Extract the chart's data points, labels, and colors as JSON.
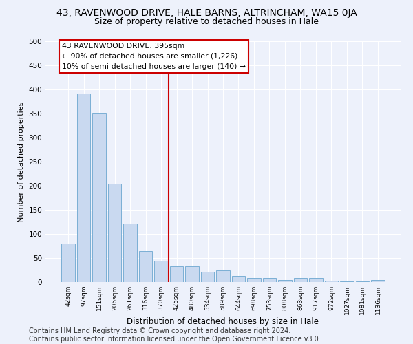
{
  "title": "43, RAVENWOOD DRIVE, HALE BARNS, ALTRINCHAM, WA15 0JA",
  "subtitle": "Size of property relative to detached houses in Hale",
  "xlabel": "Distribution of detached houses by size in Hale",
  "ylabel": "Number of detached properties",
  "categories": [
    "42sqm",
    "97sqm",
    "151sqm",
    "206sqm",
    "261sqm",
    "316sqm",
    "370sqm",
    "425sqm",
    "480sqm",
    "534sqm",
    "589sqm",
    "644sqm",
    "698sqm",
    "753sqm",
    "808sqm",
    "863sqm",
    "917sqm",
    "972sqm",
    "1027sqm",
    "1081sqm",
    "1136sqm"
  ],
  "values": [
    80,
    392,
    351,
    205,
    122,
    64,
    44,
    33,
    33,
    22,
    24,
    13,
    9,
    9,
    5,
    9,
    9,
    3,
    2,
    2,
    4
  ],
  "bar_color": "#c9d9f0",
  "bar_edge_color": "#7bafd4",
  "vline_x": 6.5,
  "vline_color": "#cc0000",
  "annotation_text": "43 RAVENWOOD DRIVE: 395sqm\n← 90% of detached houses are smaller (1,226)\n10% of semi-detached houses are larger (140) →",
  "annotation_box_color": "#ffffff",
  "annotation_box_edge_color": "#cc0000",
  "ylim": [
    0,
    500
  ],
  "yticks": [
    0,
    50,
    100,
    150,
    200,
    250,
    300,
    350,
    400,
    450,
    500
  ],
  "footer": "Contains HM Land Registry data © Crown copyright and database right 2024.\nContains public sector information licensed under the Open Government Licence v3.0.",
  "background_color": "#edf1fb",
  "grid_color": "#ffffff",
  "title_fontsize": 10,
  "subtitle_fontsize": 9,
  "footer_fontsize": 7
}
